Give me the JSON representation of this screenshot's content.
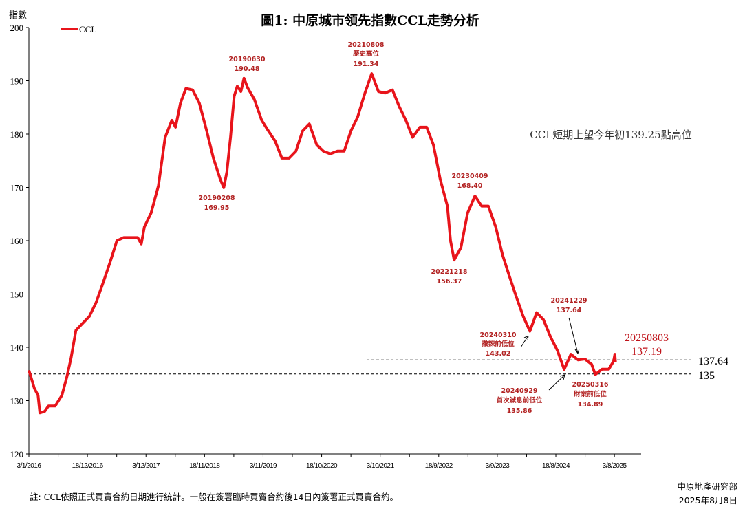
{
  "chart_data": {
    "type": "line",
    "title": "圖1: 中原城市領先指數CCL走勢分析",
    "ylabel": "指數",
    "xlabel": "",
    "ylim": [
      120,
      200
    ],
    "yticks": [
      120,
      130,
      140,
      150,
      160,
      170,
      180,
      190,
      200
    ],
    "xlim": [
      2016.0,
      2026.02
    ],
    "xtick_labels": [
      "3/1/2016",
      "18/12/2016",
      "3/12/2017",
      "18/11/2018",
      "3/11/2019",
      "18/10/2020",
      "3/10/2021",
      "18/9/2022",
      "3/9/2023",
      "18/8/2024",
      "3/8/2025"
    ],
    "grid": false,
    "legend": {
      "position": "top-left",
      "entries": [
        "CCL"
      ]
    },
    "series": [
      {
        "name": "CCL",
        "color": "#e8141b",
        "x": [
          2016.0,
          2016.09,
          2016.15,
          2016.18,
          2016.26,
          2016.32,
          2016.43,
          2016.54,
          2016.62,
          2016.69,
          2016.77,
          2016.88,
          2016.99,
          2017.1,
          2017.22,
          2017.33,
          2017.44,
          2017.55,
          2017.67,
          2017.78,
          2017.84,
          2017.89,
          2018.0,
          2018.12,
          2018.23,
          2018.34,
          2018.4,
          2018.48,
          2018.57,
          2018.68,
          2018.79,
          2018.91,
          2019.02,
          2019.13,
          2019.19,
          2019.24,
          2019.3,
          2019.36,
          2019.41,
          2019.47,
          2019.52,
          2019.58,
          2019.69,
          2019.81,
          2019.92,
          2020.03,
          2020.14,
          2020.26,
          2020.37,
          2020.48,
          2020.59,
          2020.71,
          2020.82,
          2020.93,
          2021.05,
          2021.16,
          2021.27,
          2021.38,
          2021.5,
          2021.61,
          2021.72,
          2021.83,
          2021.95,
          2022.06,
          2022.17,
          2022.28,
          2022.4,
          2022.51,
          2022.62,
          2022.73,
          2022.85,
          2022.9,
          2022.96,
          2023.07,
          2023.18,
          2023.3,
          2023.41,
          2023.52,
          2023.64,
          2023.75,
          2023.86,
          2023.97,
          2024.09,
          2024.2,
          2024.31,
          2024.42,
          2024.54,
          2024.65,
          2024.76,
          2024.87,
          2024.99,
          2025.1,
          2025.21,
          2025.27,
          2025.38,
          2025.49,
          2025.57,
          2025.59,
          2025.6
        ],
        "y": [
          135.7,
          132.3,
          131.0,
          127.7,
          128.0,
          129.0,
          129.0,
          131.0,
          134.4,
          138.0,
          143.2,
          144.5,
          145.8,
          148.4,
          152.3,
          156.0,
          160.0,
          160.6,
          160.6,
          160.6,
          159.4,
          162.6,
          165.2,
          170.3,
          179.4,
          182.6,
          181.3,
          185.8,
          188.6,
          188.3,
          185.8,
          180.6,
          175.5,
          171.6,
          169.95,
          172.9,
          179.4,
          187.1,
          189.0,
          188.0,
          190.48,
          188.7,
          186.5,
          182.6,
          180.6,
          178.7,
          175.5,
          175.5,
          176.8,
          180.6,
          181.9,
          178.0,
          176.8,
          176.3,
          176.8,
          176.8,
          180.6,
          183.2,
          187.7,
          191.34,
          188.0,
          187.7,
          188.3,
          185.2,
          182.6,
          179.4,
          181.3,
          181.3,
          178.0,
          171.6,
          166.5,
          160.0,
          156.37,
          158.7,
          165.2,
          168.4,
          166.5,
          166.5,
          162.6,
          157.4,
          153.5,
          149.7,
          145.8,
          143.02,
          146.5,
          145.2,
          141.9,
          139.4,
          135.86,
          138.7,
          137.64,
          137.8,
          136.8,
          134.89,
          135.9,
          135.9,
          137.4,
          138.7,
          137.19
        ]
      }
    ],
    "reference_lines": [
      {
        "value": 137.64,
        "label": "137.64",
        "style": "dashed"
      },
      {
        "value": 135,
        "label": "135",
        "style": "dashed"
      }
    ],
    "annotations": [
      {
        "date": "20190630",
        "value": "190.48"
      },
      {
        "date": "20190208",
        "value": "169.95"
      },
      {
        "date": "20210808",
        "desc": "歷史高位",
        "value": "191.34"
      },
      {
        "date": "20221218",
        "value": "156.37"
      },
      {
        "date": "20230409",
        "value": "168.40"
      },
      {
        "date": "20240310",
        "desc": "撤辣前低位",
        "value": "143.02"
      },
      {
        "date": "20241229",
        "value": "137.64"
      },
      {
        "date": "20240929",
        "desc": "首次減息前低位",
        "value": "135.86"
      },
      {
        "date": "20250316",
        "desc": "財案前低位",
        "value": "134.89"
      },
      {
        "date": "20250803",
        "value": "137.19"
      }
    ],
    "headline": "CCL短期上望今年初139.25點高位"
  },
  "footer": {
    "note": "註: CCL依照正式買賣合約日期進行統計。一般在簽署臨時買賣合約後14日內簽署正式買賣合約。",
    "source": "中原地產研究部",
    "date": "2025年8月8日"
  }
}
